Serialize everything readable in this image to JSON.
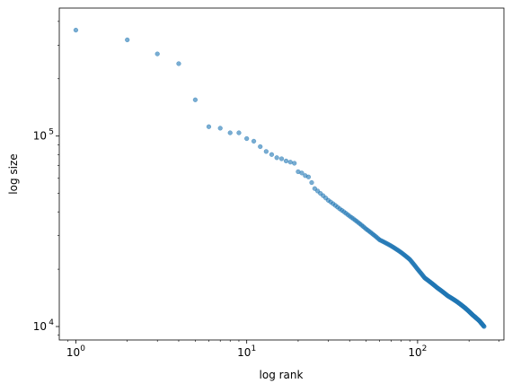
{
  "chart_data": {
    "type": "scatter",
    "title": "",
    "xlabel": "log rank",
    "ylabel": "log size",
    "xscale": "log",
    "yscale": "log",
    "xlim": [
      0.8,
      320
    ],
    "ylim": [
      8500,
      470000
    ],
    "grid": false,
    "x_ticks": [
      {
        "value": 1,
        "base": "10",
        "exp": "0"
      },
      {
        "value": 10,
        "base": "10",
        "exp": "1"
      },
      {
        "value": 100,
        "base": "10",
        "exp": "2"
      }
    ],
    "y_ticks": [
      {
        "value": 10000,
        "base": "10",
        "exp": "4"
      },
      {
        "value": 100000,
        "base": "10",
        "exp": "5"
      }
    ],
    "marker_color": "#1f77b4",
    "anchors": [
      [
        1,
        360000
      ],
      [
        2,
        320000
      ],
      [
        3,
        270000
      ],
      [
        4,
        240000
      ],
      [
        5,
        155000
      ],
      [
        6,
        112000
      ],
      [
        7,
        110000
      ],
      [
        8,
        104000
      ],
      [
        9,
        104000
      ],
      [
        10,
        97000
      ],
      [
        11,
        94000
      ],
      [
        12,
        88000
      ],
      [
        13,
        83000
      ],
      [
        14,
        80000
      ],
      [
        15,
        77000
      ],
      [
        16,
        76000
      ],
      [
        17,
        74000
      ],
      [
        18,
        73000
      ],
      [
        19,
        72000
      ],
      [
        20,
        65000
      ],
      [
        21,
        64000
      ],
      [
        22,
        62000
      ],
      [
        23,
        61000
      ],
      [
        24,
        57000
      ],
      [
        25,
        53000
      ],
      [
        27,
        50000
      ],
      [
        30,
        46000
      ],
      [
        35,
        41500
      ],
      [
        40,
        38000
      ],
      [
        50,
        32500
      ],
      [
        60,
        28500
      ],
      [
        70,
        26500
      ],
      [
        80,
        24500
      ],
      [
        90,
        22500
      ],
      [
        100,
        20000
      ],
      [
        110,
        18000
      ],
      [
        130,
        16000
      ],
      [
        150,
        14500
      ],
      [
        170,
        13500
      ],
      [
        190,
        12500
      ],
      [
        210,
        11500
      ],
      [
        230,
        10700
      ],
      [
        245,
        10000
      ]
    ]
  }
}
